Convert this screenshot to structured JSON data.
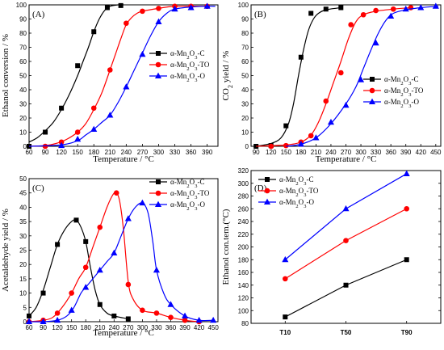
{
  "colors": {
    "C": "#000000",
    "TO": "#ff0000",
    "O": "#0000ff"
  },
  "chart_data": [
    {
      "type": "line",
      "panel_label": "(A)",
      "xlabel": "Temperature / °C",
      "ylabel": "Ethanol conversion / %",
      "xlim": [
        60,
        410
      ],
      "ylim": [
        0,
        100
      ],
      "xticks": [
        60,
        90,
        120,
        150,
        180,
        210,
        240,
        270,
        300,
        330,
        360,
        390
      ],
      "yticks": [
        0,
        10,
        20,
        30,
        40,
        50,
        60,
        70,
        80,
        90,
        100
      ],
      "legend_position": "center-right",
      "series": [
        {
          "name": "α-Mn2O3-C",
          "key": "C",
          "marker": "square",
          "x": [
            60,
            90,
            120,
            150,
            180,
            205,
            230
          ],
          "y": [
            0,
            10,
            27,
            57,
            81,
            98,
            99.5
          ],
          "curve": [
            [
              60,
              3
            ],
            [
              75,
              6
            ],
            [
              90,
              11
            ],
            [
              105,
              17
            ],
            [
              120,
              26
            ],
            [
              135,
              37
            ],
            [
              150,
              50
            ],
            [
              160,
              60
            ],
            [
              170,
              70
            ],
            [
              180,
              81
            ],
            [
              190,
              90
            ],
            [
              200,
              96
            ],
            [
              210,
              99
            ],
            [
              225,
              100
            ],
            [
              235,
              100
            ]
          ]
        },
        {
          "name": "α-Mn2O3-TO",
          "key": "TO",
          "marker": "circle",
          "x": [
            90,
            120,
            150,
            180,
            210,
            240,
            270,
            300,
            330,
            360,
            390
          ],
          "y": [
            0,
            3,
            10,
            27,
            54,
            87,
            95.5,
            97.5,
            99,
            99,
            99
          ],
          "curve": [
            [
              60,
              0
            ],
            [
              90,
              0.5
            ],
            [
              110,
              2
            ],
            [
              130,
              5
            ],
            [
              150,
              10
            ],
            [
              165,
              16
            ],
            [
              180,
              26
            ],
            [
              195,
              38
            ],
            [
              210,
              54
            ],
            [
              220,
              65
            ],
            [
              230,
              76
            ],
            [
              240,
              86
            ],
            [
              250,
              91
            ],
            [
              260,
              94
            ],
            [
              270,
              95.5
            ],
            [
              300,
              97.5
            ],
            [
              330,
              99
            ],
            [
              390,
              99
            ]
          ]
        },
        {
          "name": "α-Mn2O3-O",
          "key": "O",
          "marker": "triangle",
          "x": [
            120,
            150,
            180,
            210,
            240,
            270,
            300,
            330,
            360,
            390
          ],
          "y": [
            0.5,
            5,
            12,
            22,
            42,
            65,
            88,
            97,
            98,
            99
          ],
          "curve": [
            [
              60,
              0
            ],
            [
              120,
              1
            ],
            [
              150,
              4
            ],
            [
              165,
              8
            ],
            [
              180,
              12
            ],
            [
              195,
              17
            ],
            [
              210,
              22
            ],
            [
              225,
              31
            ],
            [
              240,
              42
            ],
            [
              255,
              54
            ],
            [
              270,
              66
            ],
            [
              285,
              78
            ],
            [
              300,
              88
            ],
            [
              315,
              94
            ],
            [
              330,
              97
            ],
            [
              360,
              98.5
            ],
            [
              390,
              99
            ],
            [
              405,
              99
            ]
          ]
        }
      ]
    },
    {
      "type": "line",
      "panel_label": "(B)",
      "xlabel": "Temperature / °C",
      "ylabel": "CO2 yield / %",
      "xlim": [
        80,
        460
      ],
      "ylim": [
        0,
        100
      ],
      "xticks": [
        90,
        120,
        150,
        180,
        210,
        240,
        270,
        300,
        330,
        360,
        390,
        420,
        450
      ],
      "yticks": [
        0,
        10,
        20,
        30,
        40,
        50,
        60,
        70,
        80,
        90,
        100
      ],
      "legend_position": "center-right",
      "series": [
        {
          "name": "α-Mn2O3-C",
          "key": "C",
          "marker": "square",
          "x": [
            90,
            120,
            150,
            180,
            200,
            230,
            260
          ],
          "y": [
            0,
            0.5,
            14.5,
            63,
            94,
            97,
            98
          ],
          "curve": [
            [
              90,
              0
            ],
            [
              120,
              2
            ],
            [
              140,
              6
            ],
            [
              155,
              16
            ],
            [
              165,
              30
            ],
            [
              175,
              50
            ],
            [
              185,
              68
            ],
            [
              195,
              82
            ],
            [
              205,
              90
            ],
            [
              215,
              94
            ],
            [
              230,
              96.5
            ],
            [
              260,
              98
            ]
          ]
        },
        {
          "name": "α-Mn2O3-TO",
          "key": "TO",
          "marker": "circle",
          "x": [
            120,
            150,
            180,
            200,
            230,
            260,
            280,
            305,
            330,
            365,
            400
          ],
          "y": [
            0,
            0.5,
            3,
            7.5,
            32,
            52,
            86,
            93,
            96,
            97,
            98
          ],
          "curve": [
            [
              90,
              0
            ],
            [
              150,
              1
            ],
            [
              180,
              3
            ],
            [
              200,
              8
            ],
            [
              215,
              17
            ],
            [
              230,
              30
            ],
            [
              245,
              45
            ],
            [
              260,
              60
            ],
            [
              275,
              76
            ],
            [
              290,
              88
            ],
            [
              305,
              93
            ],
            [
              330,
              95.5
            ],
            [
              365,
              97
            ],
            [
              400,
              98
            ]
          ]
        },
        {
          "name": "α-Mn2O3-O",
          "key": "O",
          "marker": "triangle",
          "x": [
            180,
            210,
            240,
            270,
            300,
            330,
            360,
            390,
            420,
            450
          ],
          "y": [
            1.5,
            6,
            17,
            29,
            47,
            73,
            92,
            97,
            98,
            99
          ],
          "curve": [
            [
              150,
              0
            ],
            [
              180,
              1.5
            ],
            [
              210,
              6
            ],
            [
              240,
              16
            ],
            [
              270,
              30
            ],
            [
              290,
              42
            ],
            [
              305,
              55
            ],
            [
              320,
              68
            ],
            [
              335,
              80
            ],
            [
              350,
              89
            ],
            [
              365,
              94
            ],
            [
              390,
              96.5
            ],
            [
              420,
              98
            ],
            [
              455,
              99
            ]
          ]
        }
      ]
    },
    {
      "type": "line",
      "panel_label": "(C)",
      "xlabel": "Temperature / °C",
      "ylabel": "Acetaldehyde yield / %",
      "xlim": [
        60,
        460
      ],
      "ylim": [
        0,
        50
      ],
      "xticks": [
        60,
        90,
        120,
        150,
        180,
        210,
        240,
        270,
        300,
        330,
        360,
        390,
        420,
        450
      ],
      "yticks": [
        0,
        5,
        10,
        15,
        20,
        25,
        30,
        35,
        40,
        45,
        50
      ],
      "legend_position": "top-right",
      "series": [
        {
          "name": "α-Mn2O3-C",
          "key": "C",
          "marker": "square",
          "x": [
            60,
            90,
            120,
            160,
            180,
            210,
            240,
            270
          ],
          "y": [
            2,
            10,
            27,
            35.5,
            28,
            6,
            2,
            1
          ],
          "curve": [
            [
              60,
              2
            ],
            [
              75,
              5
            ],
            [
              90,
              11
            ],
            [
              105,
              19
            ],
            [
              120,
              27
            ],
            [
              135,
              32
            ],
            [
              150,
              35
            ],
            [
              160,
              35.5
            ],
            [
              170,
              33
            ],
            [
              180,
              28
            ],
            [
              190,
              19
            ],
            [
              200,
              11
            ],
            [
              210,
              6
            ],
            [
              225,
              3
            ],
            [
              240,
              2
            ],
            [
              270,
              1
            ]
          ]
        },
        {
          "name": "α-Mn2O3-TO",
          "key": "TO",
          "marker": "circle",
          "x": [
            60,
            90,
            120,
            150,
            180,
            210,
            245,
            270,
            300,
            330,
            360,
            390,
            420
          ],
          "y": [
            0,
            0.5,
            3,
            10,
            19,
            33,
            45,
            13,
            4,
            3,
            1.5,
            0.5,
            0
          ],
          "curve": [
            [
              60,
              0
            ],
            [
              90,
              0.5
            ],
            [
              110,
              1.5
            ],
            [
              130,
              5
            ],
            [
              150,
              10
            ],
            [
              165,
              15
            ],
            [
              180,
              19
            ],
            [
              195,
              26
            ],
            [
              210,
              33
            ],
            [
              225,
              40
            ],
            [
              238,
              44.5
            ],
            [
              245,
              45
            ],
            [
              252,
              42
            ],
            [
              260,
              32
            ],
            [
              270,
              14
            ],
            [
              280,
              8
            ],
            [
              300,
              4
            ],
            [
              330,
              3
            ],
            [
              360,
              1.5
            ],
            [
              390,
              0.5
            ],
            [
              420,
              0
            ]
          ]
        },
        {
          "name": "α-Mn2O3-O",
          "key": "O",
          "marker": "triangle",
          "x": [
            60,
            90,
            120,
            150,
            180,
            210,
            240,
            270,
            300,
            330,
            360,
            390,
            420,
            450
          ],
          "y": [
            0,
            0,
            0.5,
            4,
            12,
            18,
            24,
            36,
            41.5,
            18,
            6,
            2,
            0.5,
            0.5
          ],
          "curve": [
            [
              60,
              0
            ],
            [
              90,
              0
            ],
            [
              120,
              0.5
            ],
            [
              140,
              2
            ],
            [
              155,
              5
            ],
            [
              170,
              10
            ],
            [
              180,
              12
            ],
            [
              195,
              15
            ],
            [
              210,
              18
            ],
            [
              225,
              21
            ],
            [
              240,
              24
            ],
            [
              255,
              30
            ],
            [
              270,
              36
            ],
            [
              285,
              40
            ],
            [
              300,
              41.5
            ],
            [
              312,
              38
            ],
            [
              322,
              28
            ],
            [
              330,
              18
            ],
            [
              345,
              10
            ],
            [
              360,
              6
            ],
            [
              390,
              2
            ],
            [
              420,
              0.5
            ],
            [
              450,
              0.5
            ]
          ]
        }
      ]
    },
    {
      "type": "line",
      "panel_label": "(D)",
      "xlabel": "",
      "ylabel": "Ethanol con.tem.(°C)",
      "categories": [
        "T10",
        "T50",
        "T90"
      ],
      "ylim": [
        80,
        320
      ],
      "yticks": [
        80,
        100,
        120,
        140,
        160,
        180,
        200,
        220,
        240,
        260,
        280,
        300,
        320
      ],
      "legend_position": "top-left",
      "series": [
        {
          "name": "α-Mn2O3-C",
          "key": "C",
          "marker": "square",
          "values": [
            90,
            140,
            180
          ]
        },
        {
          "name": "α-Mn2O3-TO",
          "key": "TO",
          "marker": "circle",
          "values": [
            150,
            210,
            260
          ]
        },
        {
          "name": "α-Mn2O3-O",
          "key": "O",
          "marker": "triangle",
          "values": [
            180,
            260,
            315
          ]
        }
      ]
    }
  ]
}
